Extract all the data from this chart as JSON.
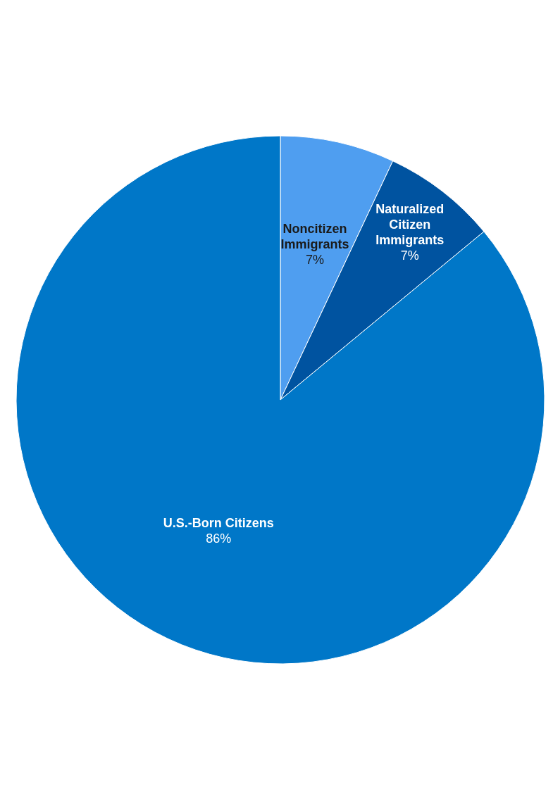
{
  "chart_data": {
    "type": "pie",
    "categories": [
      "Noncitizen Immigrants",
      "Naturalized Citizen Immigrants",
      "U.S.-Born Citizens"
    ],
    "values": [
      7,
      7,
      86
    ],
    "colors": [
      "#4f9ef0",
      "#0053a0",
      "#0077c8"
    ],
    "value_labels": [
      "7%",
      "7%",
      "86%"
    ]
  }
}
